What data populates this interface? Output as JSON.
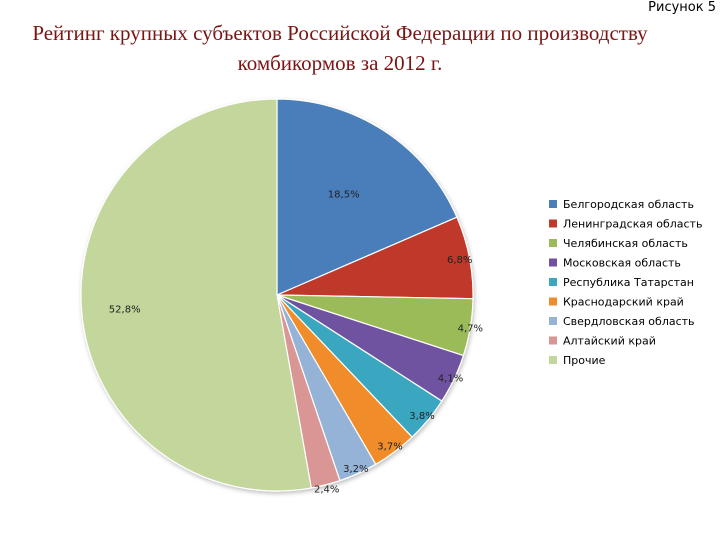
{
  "header": {
    "figure_label": "Рисунок 5",
    "title_line1": "Рейтинг крупных субъектов Российской Федерации по производству",
    "title_line2": "комбикормов за 2012 г."
  },
  "chart_data": {
    "type": "pie",
    "title": "Рейтинг крупных субъектов Российской Федерации по производству комбикормов за 2012 г.",
    "legend_position": "right",
    "slices": [
      {
        "name": "Белгородская область",
        "value": 18.5,
        "label": "18,5%",
        "color": "#4a7ebb"
      },
      {
        "name": "Ленинградская область",
        "value": 6.8,
        "label": "6,8%",
        "color": "#c0392b"
      },
      {
        "name": "Челябинская область",
        "value": 4.7,
        "label": "4,7%",
        "color": "#9bbb59"
      },
      {
        "name": "Московская область",
        "value": 4.1,
        "label": "4,1%",
        "color": "#7052a0"
      },
      {
        "name": "Республика Татарстан",
        "value": 3.8,
        "label": "3,8%",
        "color": "#3aa6c0"
      },
      {
        "name": "Краснодарский край",
        "value": 3.7,
        "label": "3,7%",
        "color": "#f08c2b"
      },
      {
        "name": "Свердловская область",
        "value": 3.2,
        "label": "3,2%",
        "color": "#95b3d7"
      },
      {
        "name": "Алтайский край",
        "value": 2.4,
        "label": "2,4%",
        "color": "#d99694"
      },
      {
        "name": "Прочие",
        "value": 52.8,
        "label": "52,8%",
        "color": "#c3d69b"
      }
    ]
  }
}
